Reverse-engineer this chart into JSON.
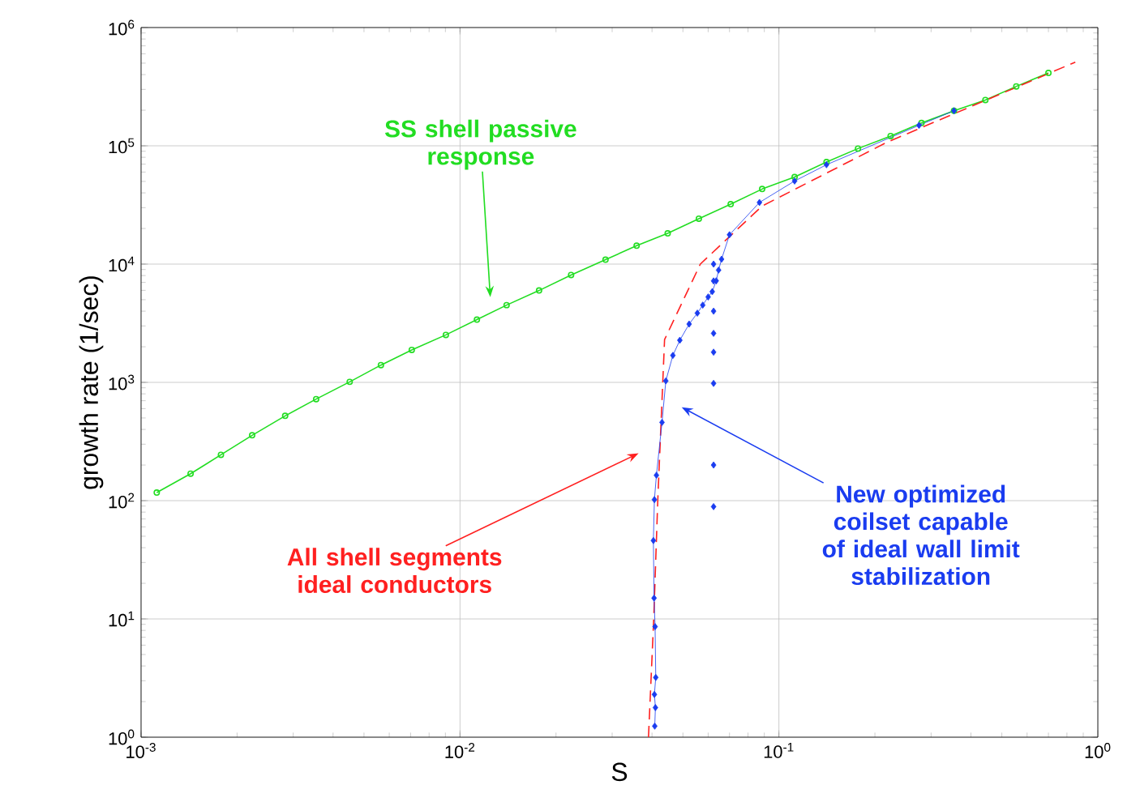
{
  "chart_data": {
    "type": "line",
    "xlabel": "S",
    "ylabel": "growth rate (1/sec)",
    "log": "xy",
    "grid": true,
    "xlim": [
      0.001,
      1
    ],
    "ylim": [
      1,
      1000000
    ],
    "xticks": [
      {
        "value": 0.001,
        "label": "10$^{-3}$"
      },
      {
        "value": 0.01,
        "label": "10$^{-2}$"
      },
      {
        "value": 0.1,
        "label": "10$^{-1}$"
      },
      {
        "value": 1,
        "label": "10$^{0}$"
      }
    ],
    "yticks": [
      {
        "value": 1,
        "label": "10$^{0}$"
      },
      {
        "value": 10,
        "label": "10$^{1}$"
      },
      {
        "value": 100,
        "label": "10$^{2}$"
      },
      {
        "value": 1000,
        "label": "10$^{3}$"
      },
      {
        "value": 10000,
        "label": "10$^{4}$"
      },
      {
        "value": 100000,
        "label": "10$^{5}$"
      },
      {
        "value": 1000000,
        "label": "10$^{6}$"
      }
    ],
    "series": [
      {
        "color": "#22dd22",
        "marker": "circle",
        "line_style": "solid",
        "x": [
          0.00112,
          0.00143,
          0.00178,
          0.00223,
          0.00283,
          0.00354,
          0.00451,
          0.00565,
          0.00706,
          0.00903,
          0.0113,
          0.014,
          0.0177,
          0.0223,
          0.0286,
          0.0358,
          0.0448,
          0.0561,
          0.0706,
          0.0886,
          0.112,
          0.141,
          0.177,
          0.224,
          0.28,
          0.354,
          0.444,
          0.555,
          0.7
        ],
        "values": [
          117,
          169,
          244,
          357,
          521,
          722,
          1010,
          1400,
          1880,
          2520,
          3390,
          4500,
          5980,
          8090,
          10900,
          14300,
          18200,
          24200,
          32100,
          43100,
          54400,
          72900,
          94800,
          121000,
          156000,
          198000,
          244000,
          318000,
          413000
        ]
      },
      {
        "color": "#ff2020",
        "marker": "none",
        "line_style": "dashed",
        "x": [
          0.039,
          0.0405,
          0.0417,
          0.0438,
          0.0567,
          0.0886,
          0.218,
          0.85
        ],
        "values": [
          1,
          10,
          100,
          2300,
          10000,
          31000,
          107000,
          510000
        ]
      },
      {
        "color": "#1a3cf0",
        "marker": "diamond",
        "line_style": "solid",
        "x": [
          0.0408,
          0.041,
          0.0407,
          0.0411,
          0.0409,
          0.0406,
          0.0404,
          0.0407,
          0.0413,
          0.043,
          0.0442,
          0.0465,
          0.0489,
          0.0523,
          0.0555,
          0.0577,
          0.06,
          0.0618,
          0.0636,
          0.0647,
          0.0661,
          0.07,
          0.0869,
          0.112,
          0.141,
          0.275,
          0.354
        ],
        "values": [
          1.24,
          1.78,
          2.3,
          3.2,
          8.6,
          15,
          46,
          102,
          164,
          459,
          1030,
          1690,
          2270,
          3110,
          3850,
          4500,
          5270,
          5850,
          7220,
          8900,
          11000,
          17700,
          33200,
          50400,
          69200,
          149000,
          198000
        ]
      },
      {
        "type": "scatter",
        "color": "#1a3cf0",
        "marker": "diamond",
        "x": [
          0.0624,
          0.0624,
          0.0624,
          0.0624,
          0.0624,
          0.0624,
          0.0624,
          0.0624
        ],
        "values": [
          10000,
          7200,
          4000,
          2600,
          1800,
          980,
          200,
          89
        ]
      }
    ],
    "annotations": [
      "**SS shell passive response**",
      "**All shell segments ideal conductors**",
      "**New optimized coilset capable of ideal wall limit stabilization**"
    ]
  }
}
